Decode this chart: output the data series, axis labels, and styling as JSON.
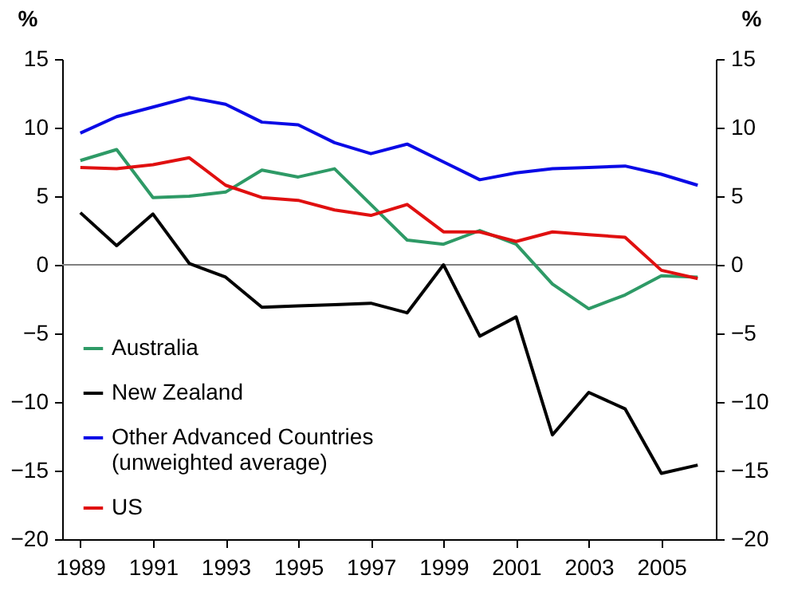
{
  "chart_data": {
    "type": "line",
    "ylabel": "%",
    "y2label": "%",
    "x": [
      1989,
      1990,
      1991,
      1992,
      1993,
      1994,
      1995,
      1996,
      1997,
      1998,
      1999,
      2000,
      2001,
      2002,
      2003,
      2004,
      2005,
      2006
    ],
    "series": [
      {
        "name": "Australia",
        "color": "#2e9a66",
        "values": [
          7.6,
          8.4,
          4.9,
          5.0,
          5.3,
          6.9,
          6.4,
          7.0,
          4.4,
          1.8,
          1.5,
          2.5,
          1.5,
          -1.4,
          -3.2,
          -2.2,
          -0.8,
          -0.9
        ]
      },
      {
        "name": "New Zealand",
        "color": "#000000",
        "values": [
          3.8,
          1.4,
          3.7,
          0.1,
          -0.9,
          -3.1,
          -3.0,
          -2.9,
          -2.8,
          -3.5,
          0.0,
          -5.2,
          -3.8,
          -12.4,
          -9.3,
          -10.5,
          -15.2,
          -14.6
        ]
      },
      {
        "name": "Other Advanced Countries\n(unweighted average)",
        "color": "#0a0ae6",
        "values": [
          9.6,
          10.8,
          11.5,
          12.2,
          11.7,
          10.4,
          10.2,
          8.9,
          8.1,
          8.8,
          7.5,
          6.2,
          6.7,
          7.0,
          7.1,
          7.2,
          6.6,
          5.8
        ]
      },
      {
        "name": "US",
        "color": "#e01010",
        "values": [
          7.1,
          7.0,
          7.3,
          7.8,
          5.8,
          4.9,
          4.7,
          4.0,
          3.6,
          4.4,
          2.4,
          2.4,
          1.7,
          2.4,
          2.2,
          2.0,
          -0.4,
          -1.0
        ]
      }
    ],
    "xlim": [
      1988.5,
      2006.5
    ],
    "xticks": [
      1989,
      1991,
      1993,
      1995,
      1997,
      1999,
      2001,
      2003,
      2005
    ],
    "ylim": [
      -20,
      15
    ],
    "yticks": [
      -20,
      -15,
      -10,
      -5,
      0,
      5,
      10,
      15
    ],
    "y2lim": [
      -20,
      15
    ],
    "y2ticks": [
      -20,
      -15,
      -10,
      -5,
      0,
      5,
      10,
      15
    ],
    "ref_lines": [
      {
        "axis": "y",
        "value": 0,
        "color": "#808080"
      }
    ],
    "legend": "bottom left",
    "grid": false
  }
}
